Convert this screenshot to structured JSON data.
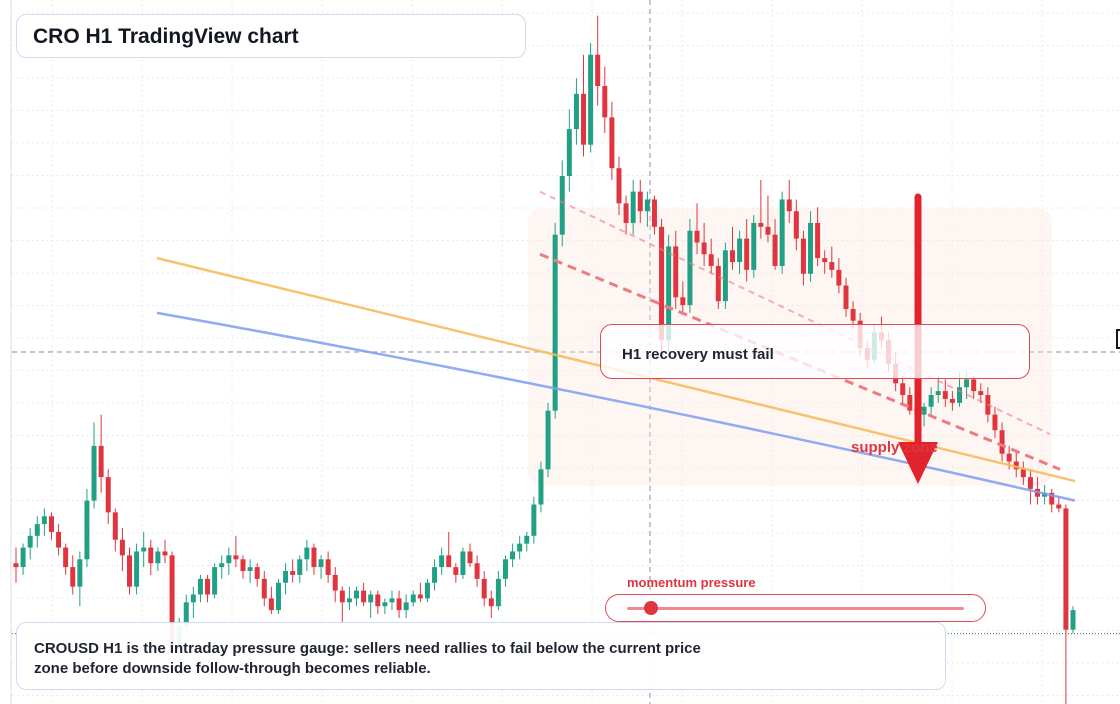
{
  "title": "CRO H1 TradingView chart",
  "caption": "CROUSD H1 is the intraday pressure gauge: sellers need rallies to fail below the current price zone before downside follow-through becomes reliable.",
  "callout": "H1 recovery must fail",
  "supply_label": "supply zone",
  "momentum": {
    "label": "momentum pressure",
    "level": 0.07
  },
  "colors": {
    "up": "#22a085",
    "down": "#e0353f",
    "ma_fast": "#f7b955",
    "ma_slow": "#7d9cf2",
    "trend": "#ee7b82",
    "arrow": "#e0232d",
    "zone_fill": "#fbe6dc",
    "grid": "#e0e3eb"
  },
  "chart_data": {
    "type": "candlestick",
    "instrument": "CROUSD",
    "timeframe": "H1",
    "x_axis_labels": [],
    "y_axis_labels": [],
    "candles_ohlc": [
      [
        0.0986,
        0.099,
        0.0981,
        0.0985
      ],
      [
        0.0985,
        0.0991,
        0.0983,
        0.099
      ],
      [
        0.099,
        0.0995,
        0.0987,
        0.0993
      ],
      [
        0.0993,
        0.0998,
        0.099,
        0.0996
      ],
      [
        0.0996,
        0.1,
        0.0993,
        0.0998
      ],
      [
        0.0998,
        0.0999,
        0.0992,
        0.0994
      ],
      [
        0.0994,
        0.0996,
        0.0988,
        0.099
      ],
      [
        0.099,
        0.0991,
        0.0983,
        0.0985
      ],
      [
        0.0985,
        0.0988,
        0.0978,
        0.098
      ],
      [
        0.098,
        0.0989,
        0.0975,
        0.0987
      ],
      [
        0.0987,
        0.1005,
        0.0985,
        0.1002
      ],
      [
        0.1002,
        0.1022,
        0.1,
        0.1016
      ],
      [
        0.1016,
        0.1024,
        0.1004,
        0.1008
      ],
      [
        0.1008,
        0.101,
        0.0996,
        0.0999
      ],
      [
        0.0999,
        0.1,
        0.0989,
        0.0992
      ],
      [
        0.0992,
        0.0995,
        0.0984,
        0.0988
      ],
      [
        0.0988,
        0.099,
        0.0978,
        0.098
      ],
      [
        0.098,
        0.0991,
        0.0978,
        0.0989
      ],
      [
        0.0989,
        0.0994,
        0.0985,
        0.099
      ],
      [
        0.099,
        0.0992,
        0.0983,
        0.0986
      ],
      [
        0.0986,
        0.099,
        0.0984,
        0.0989
      ],
      [
        0.0989,
        0.0992,
        0.0986,
        0.0988
      ],
      [
        0.0988,
        0.0989,
        0.0963,
        0.0964
      ],
      [
        0.0964,
        0.0972,
        0.0957,
        0.097
      ],
      [
        0.097,
        0.0978,
        0.0968,
        0.0976
      ],
      [
        0.0976,
        0.098,
        0.0972,
        0.0978
      ],
      [
        0.0978,
        0.0983,
        0.0976,
        0.0982
      ],
      [
        0.0982,
        0.0983,
        0.0976,
        0.0978
      ],
      [
        0.0978,
        0.0986,
        0.0977,
        0.0985
      ],
      [
        0.0985,
        0.0988,
        0.0982,
        0.0986
      ],
      [
        0.0986,
        0.099,
        0.0983,
        0.0988
      ],
      [
        0.0988,
        0.0993,
        0.0985,
        0.0987
      ],
      [
        0.0987,
        0.0988,
        0.0982,
        0.0984
      ],
      [
        0.0984,
        0.0987,
        0.0981,
        0.0985
      ],
      [
        0.0985,
        0.0986,
        0.098,
        0.0982
      ],
      [
        0.0982,
        0.0984,
        0.0975,
        0.0977
      ],
      [
        0.0977,
        0.098,
        0.0973,
        0.0974
      ],
      [
        0.0974,
        0.0982,
        0.0973,
        0.0981
      ],
      [
        0.0981,
        0.0986,
        0.0978,
        0.0984
      ],
      [
        0.0984,
        0.0987,
        0.0981,
        0.0983
      ],
      [
        0.0983,
        0.0988,
        0.0981,
        0.0987
      ],
      [
        0.0987,
        0.0992,
        0.0984,
        0.099
      ],
      [
        0.099,
        0.0991,
        0.0983,
        0.0985
      ],
      [
        0.0985,
        0.0988,
        0.0982,
        0.0987
      ],
      [
        0.0987,
        0.0989,
        0.0981,
        0.0983
      ],
      [
        0.0983,
        0.0985,
        0.0976,
        0.0979
      ],
      [
        0.0979,
        0.098,
        0.0971,
        0.0976
      ],
      [
        0.0976,
        0.098,
        0.0974,
        0.0977
      ],
      [
        0.0977,
        0.098,
        0.0975,
        0.0979
      ],
      [
        0.0979,
        0.0981,
        0.0975,
        0.0976
      ],
      [
        0.0976,
        0.0979,
        0.0972,
        0.0978
      ],
      [
        0.0978,
        0.0979,
        0.0973,
        0.0975
      ],
      [
        0.0975,
        0.0977,
        0.0973,
        0.0976
      ],
      [
        0.0976,
        0.0979,
        0.0974,
        0.0977
      ],
      [
        0.0977,
        0.0979,
        0.0972,
        0.0974
      ],
      [
        0.0974,
        0.0978,
        0.0972,
        0.0976
      ],
      [
        0.0976,
        0.0979,
        0.0975,
        0.0978
      ],
      [
        0.0978,
        0.0981,
        0.0976,
        0.0977
      ],
      [
        0.0977,
        0.0982,
        0.0976,
        0.0981
      ],
      [
        0.0981,
        0.0987,
        0.0979,
        0.0985
      ],
      [
        0.0985,
        0.099,
        0.0983,
        0.0988
      ],
      [
        0.0988,
        0.0994,
        0.0986,
        0.0985
      ],
      [
        0.0985,
        0.0986,
        0.0981,
        0.0983
      ],
      [
        0.0983,
        0.099,
        0.0982,
        0.0989
      ],
      [
        0.0989,
        0.0991,
        0.0985,
        0.0986
      ],
      [
        0.0986,
        0.0988,
        0.098,
        0.0982
      ],
      [
        0.0982,
        0.0984,
        0.0975,
        0.0977
      ],
      [
        0.0977,
        0.0979,
        0.0972,
        0.0975
      ],
      [
        0.0975,
        0.0984,
        0.0974,
        0.0982
      ],
      [
        0.0982,
        0.0988,
        0.098,
        0.0987
      ],
      [
        0.0987,
        0.0991,
        0.0985,
        0.0989
      ],
      [
        0.0989,
        0.0993,
        0.0987,
        0.0991
      ],
      [
        0.0991,
        0.0994,
        0.0989,
        0.0993
      ],
      [
        0.0993,
        0.1003,
        0.0991,
        0.1001
      ],
      [
        0.1001,
        0.1012,
        0.0999,
        0.101
      ],
      [
        0.101,
        0.1027,
        0.1008,
        0.1025
      ],
      [
        0.1025,
        0.1073,
        0.1023,
        0.107
      ],
      [
        0.107,
        0.1089,
        0.1067,
        0.1085
      ],
      [
        0.1085,
        0.1102,
        0.1081,
        0.1097
      ],
      [
        0.1097,
        0.111,
        0.1093,
        0.1106
      ],
      [
        0.1106,
        0.1116,
        0.109,
        0.1093
      ],
      [
        0.1093,
        0.1119,
        0.1091,
        0.1116
      ],
      [
        0.1116,
        0.1126,
        0.1103,
        0.1108
      ],
      [
        0.1108,
        0.1113,
        0.1096,
        0.11
      ],
      [
        0.11,
        0.1104,
        0.1084,
        0.1087
      ],
      [
        0.1087,
        0.109,
        0.1075,
        0.1078
      ],
      [
        0.1078,
        0.108,
        0.107,
        0.1073
      ],
      [
        0.1073,
        0.1084,
        0.107,
        0.1081
      ],
      [
        0.1081,
        0.1084,
        0.1073,
        0.1076
      ],
      [
        0.1076,
        0.1081,
        0.1072,
        0.1079
      ],
      [
        0.1079,
        0.108,
        0.107,
        0.1072
      ],
      [
        0.1072,
        0.1074,
        0.104,
        0.1043
      ],
      [
        0.1043,
        0.107,
        0.104,
        0.1067
      ],
      [
        0.1067,
        0.1071,
        0.1051,
        0.1054
      ],
      [
        0.1054,
        0.1058,
        0.105,
        0.1052
      ],
      [
        0.1052,
        0.1074,
        0.105,
        0.1071
      ],
      [
        0.1071,
        0.1078,
        0.1065,
        0.1068
      ],
      [
        0.1068,
        0.1073,
        0.1062,
        0.1065
      ],
      [
        0.1065,
        0.1069,
        0.106,
        0.1062
      ],
      [
        0.1062,
        0.1064,
        0.1051,
        0.1053
      ],
      [
        0.1053,
        0.1068,
        0.1051,
        0.1066
      ],
      [
        0.1066,
        0.1072,
        0.1061,
        0.1063
      ],
      [
        0.1063,
        0.1071,
        0.106,
        0.1069
      ],
      [
        0.1069,
        0.1074,
        0.1058,
        0.1061
      ],
      [
        0.1061,
        0.1075,
        0.1059,
        0.1073
      ],
      [
        0.1073,
        0.1084,
        0.1069,
        0.1072
      ],
      [
        0.1072,
        0.108,
        0.1068,
        0.107
      ],
      [
        0.107,
        0.1074,
        0.1061,
        0.1062
      ],
      [
        0.1062,
        0.1081,
        0.106,
        0.1079
      ],
      [
        0.1079,
        0.1084,
        0.1073,
        0.1076
      ],
      [
        0.1076,
        0.1079,
        0.1066,
        0.1069
      ],
      [
        0.1069,
        0.1071,
        0.1057,
        0.106
      ],
      [
        0.106,
        0.1076,
        0.1058,
        0.1073
      ],
      [
        0.1073,
        0.1077,
        0.1062,
        0.1064
      ],
      [
        0.1064,
        0.1066,
        0.106,
        0.1063
      ],
      [
        0.1063,
        0.1067,
        0.1059,
        0.1061
      ],
      [
        0.1061,
        0.1064,
        0.1055,
        0.1057
      ],
      [
        0.1057,
        0.1059,
        0.1049,
        0.1051
      ],
      [
        0.1051,
        0.1053,
        0.1046,
        0.1048
      ],
      [
        0.1048,
        0.105,
        0.1039,
        0.1041
      ],
      [
        0.1041,
        0.1043,
        0.1036,
        0.1038
      ],
      [
        0.1038,
        0.1047,
        0.1037,
        0.1045
      ],
      [
        0.1045,
        0.1049,
        0.1041,
        0.1043
      ],
      [
        0.1043,
        0.1045,
        0.1035,
        0.1037
      ],
      [
        0.1037,
        0.104,
        0.103,
        0.1032
      ],
      [
        0.1032,
        0.1034,
        0.1027,
        0.1029
      ],
      [
        0.1029,
        0.1031,
        0.1024,
        0.1025
      ],
      [
        0.1025,
        0.1028,
        0.1022,
        0.1024
      ],
      [
        0.1024,
        0.1027,
        0.1021,
        0.1026
      ],
      [
        0.1026,
        0.1031,
        0.1024,
        0.1029
      ],
      [
        0.1029,
        0.1034,
        0.1027,
        0.103
      ],
      [
        0.103,
        0.1033,
        0.1026,
        0.1028
      ],
      [
        0.1028,
        0.103,
        0.1025,
        0.1027
      ],
      [
        0.1027,
        0.1035,
        0.1026,
        0.1031
      ],
      [
        0.1031,
        0.1035,
        0.1028,
        0.1033
      ],
      [
        0.1033,
        0.1034,
        0.1028,
        0.103
      ],
      [
        0.103,
        0.1032,
        0.1027,
        0.1029
      ],
      [
        0.1029,
        0.1031,
        0.1022,
        0.1024
      ],
      [
        0.1024,
        0.1026,
        0.1018,
        0.102
      ],
      [
        0.102,
        0.1022,
        0.1012,
        0.1014
      ],
      [
        0.1014,
        0.1016,
        0.101,
        0.1012
      ],
      [
        0.1012,
        0.1015,
        0.1008,
        0.101
      ],
      [
        0.101,
        0.1012,
        0.1006,
        0.1008
      ],
      [
        0.1008,
        0.101,
        0.1001,
        0.1005
      ],
      [
        0.1005,
        0.1008,
        0.1001,
        0.1003
      ],
      [
        0.1003,
        0.1006,
        0.1001,
        0.1004
      ],
      [
        0.1004,
        0.1005,
        0.0999,
        0.1001
      ],
      [
        0.1001,
        0.1003,
        0.0999,
        0.1
      ],
      [
        0.1,
        0.1001,
        0.095,
        0.0969
      ],
      [
        0.0969,
        0.0975,
        0.0968,
        0.0974
      ]
    ],
    "moving_averages": [
      {
        "start": 0.1064,
        "end": 0.1007
      },
      {
        "start": 0.105,
        "end": 0.1002
      }
    ],
    "trendlines": [
      {
        "from": 0.1081,
        "to": 0.1019
      },
      {
        "from": 0.1065,
        "to": 0.101
      }
    ],
    "reference_levels": [
      0.104,
      0.0968
    ],
    "price_range": [
      0.095,
      0.113
    ]
  }
}
